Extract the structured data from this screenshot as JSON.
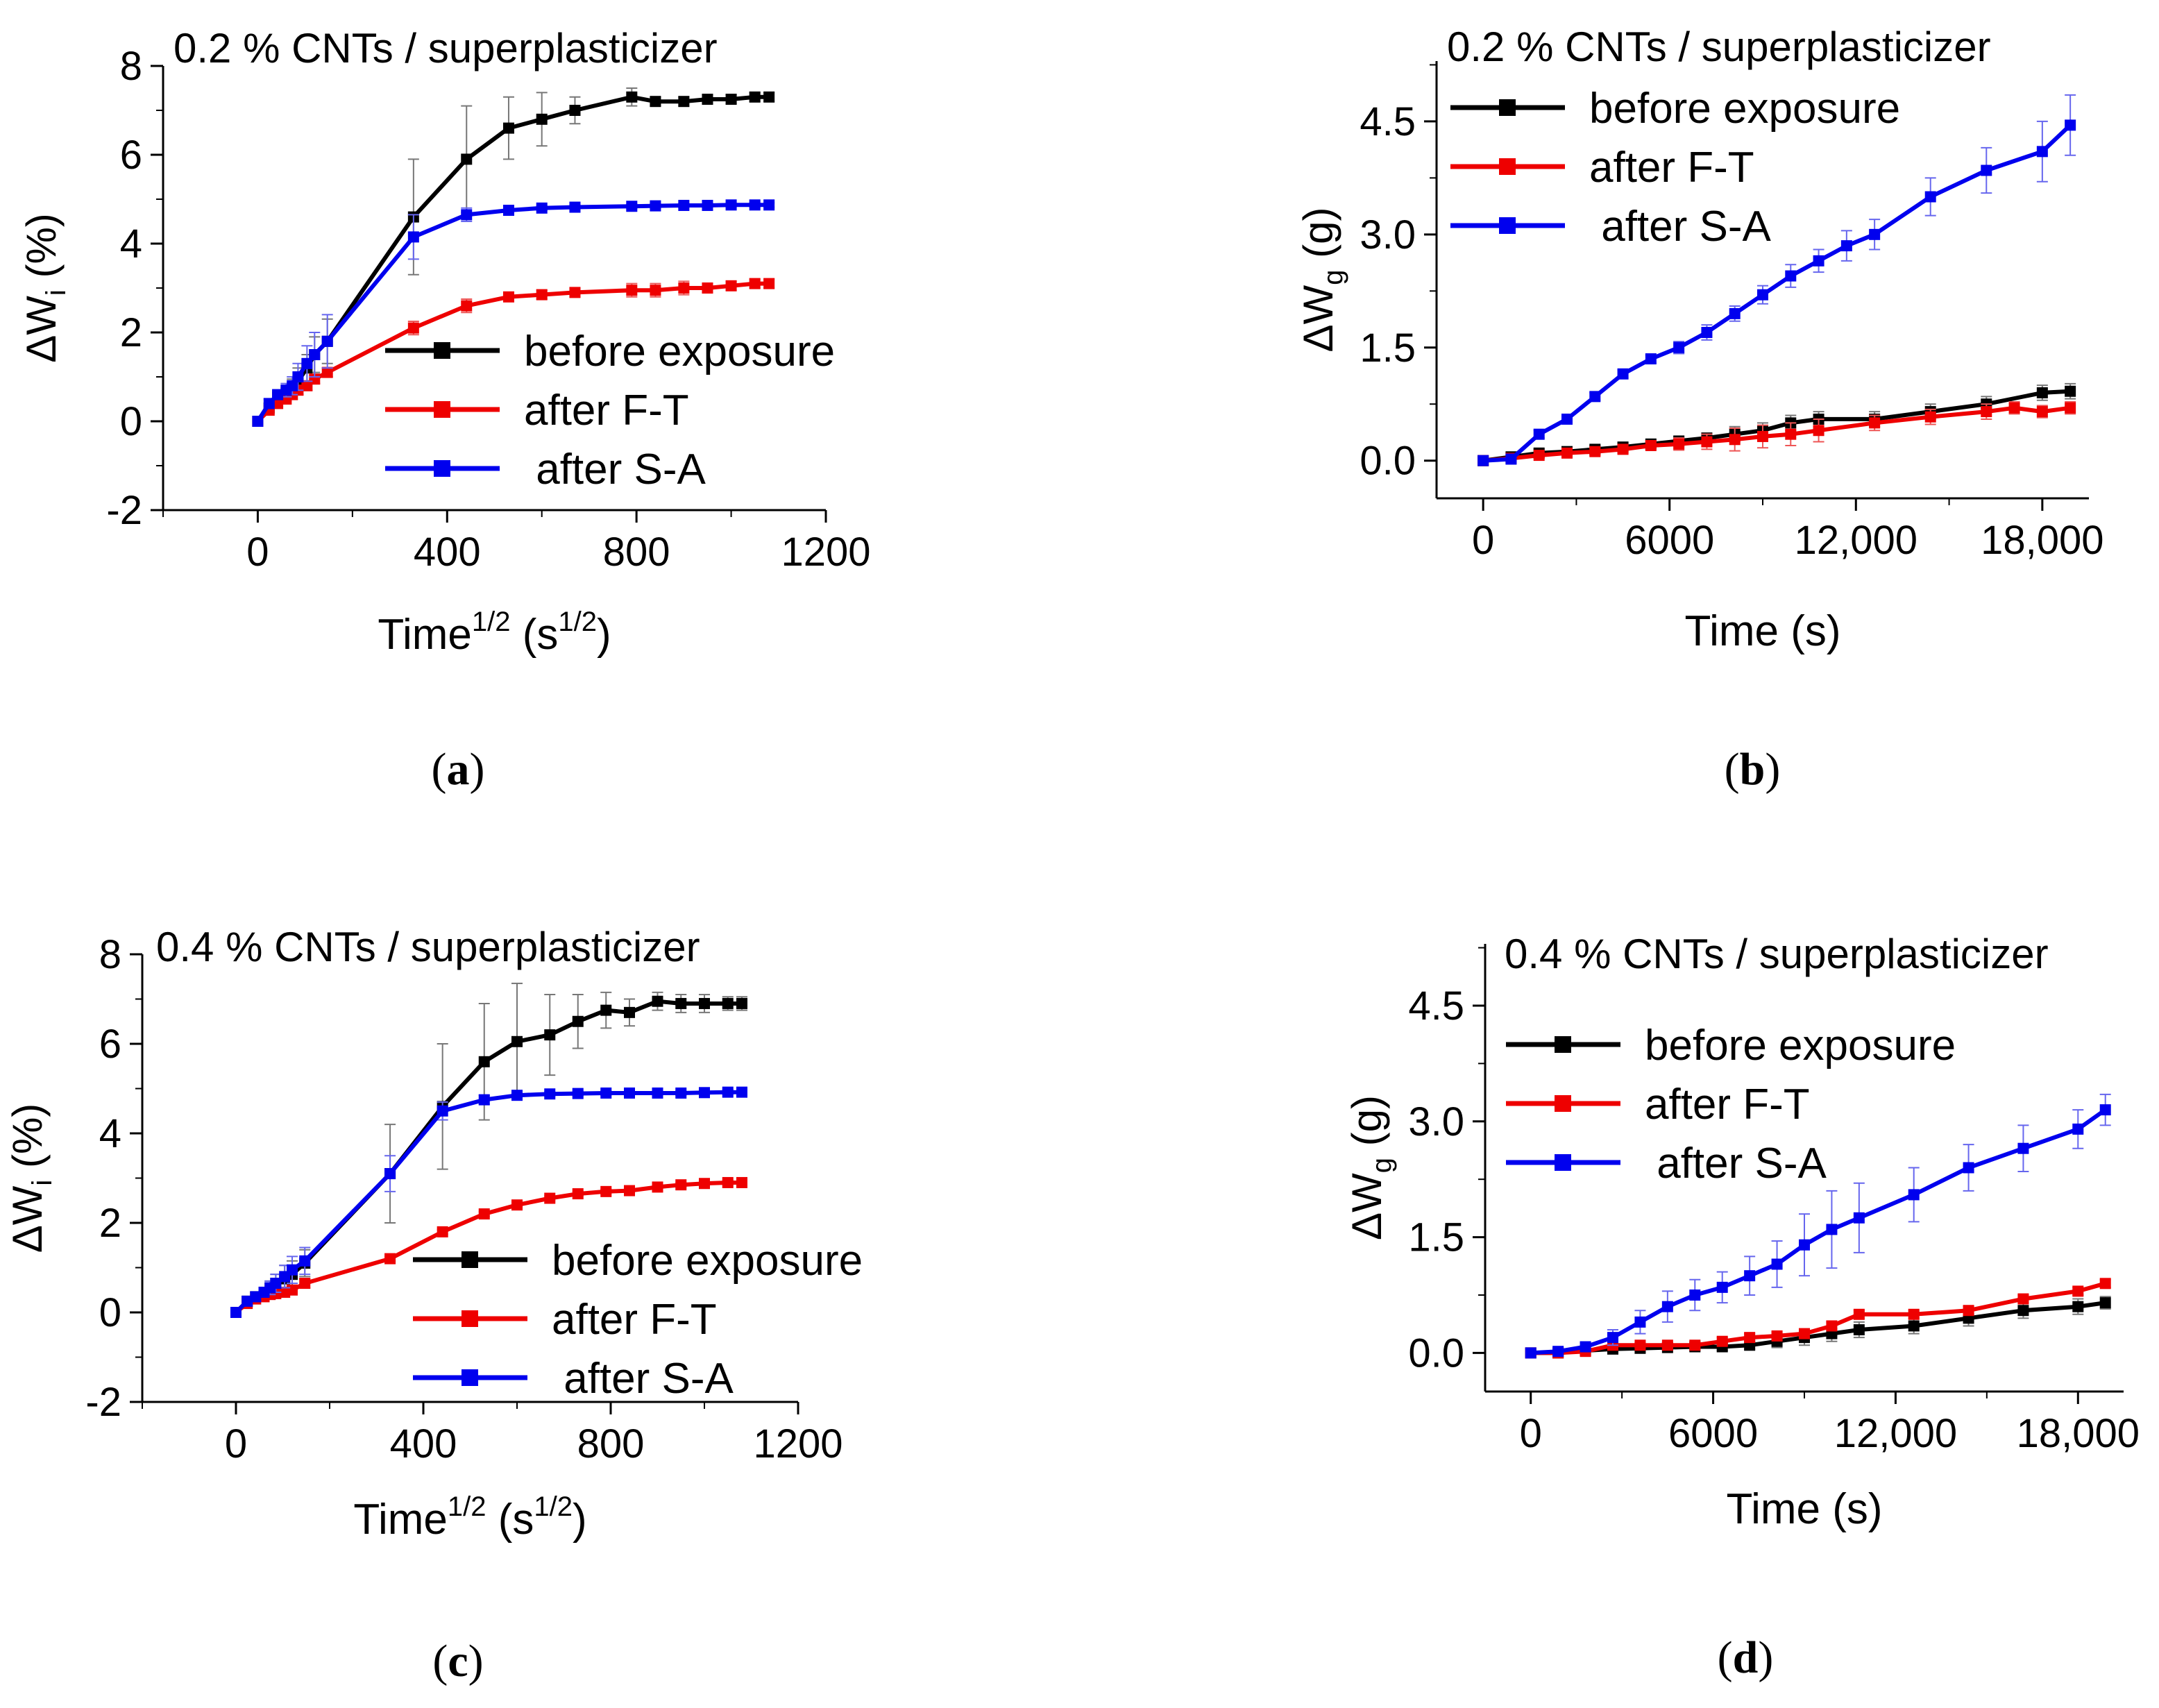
{
  "chart_data": [
    {
      "id": "a",
      "panel_label": "(a)",
      "type": "line",
      "title": "0.2 % CNTs / superplasticizer",
      "ylabel": {
        "main": "ΔW",
        "sub": "i",
        "rest": " (%)"
      },
      "xlabel": {
        "main": "Time",
        "sup1": "1/2",
        "mid": " (s",
        "sup2": "1/2",
        "end": ")"
      },
      "xlim": [
        -200,
        1200
      ],
      "ylim": [
        -2,
        8
      ],
      "xticks": [
        0,
        400,
        800,
        1200
      ],
      "xtick_labels": [
        "0",
        "400",
        "800",
        "1200"
      ],
      "yticks": [
        -2,
        0,
        2,
        4,
        6,
        8
      ],
      "ytick_labels": [
        "-2",
        "0",
        "2",
        "4",
        "6",
        "8"
      ],
      "legend_position": "right",
      "series": [
        {
          "name": "before exposure",
          "color": "#000000",
          "x": [
            0,
            24,
            42,
            60,
            73,
            85,
            104,
            120,
            147,
            329,
            441,
            530,
            600,
            670,
            790,
            840,
            900,
            950,
            1000,
            1050,
            1080
          ],
          "y": [
            0,
            0.3,
            0.55,
            0.65,
            0.75,
            0.9,
            1.2,
            1.5,
            1.8,
            4.6,
            5.9,
            6.6,
            6.8,
            7.0,
            7.3,
            7.2,
            7.2,
            7.25,
            7.25,
            7.3,
            7.3
          ],
          "err": [
            0,
            0.1,
            0.1,
            0.15,
            0.2,
            0.3,
            0.3,
            0.4,
            0.5,
            1.3,
            1.2,
            0.7,
            0.6,
            0.3,
            0.2,
            0.1,
            0.1,
            0.1,
            0.1,
            0.1,
            0.1
          ]
        },
        {
          "name": "after F-T",
          "color": "#ee0000",
          "x": [
            0,
            24,
            42,
            60,
            73,
            85,
            104,
            120,
            147,
            329,
            441,
            530,
            600,
            670,
            790,
            840,
            900,
            950,
            1000,
            1050,
            1080
          ],
          "y": [
            0,
            0.25,
            0.4,
            0.5,
            0.6,
            0.7,
            0.8,
            0.95,
            1.1,
            2.1,
            2.6,
            2.8,
            2.85,
            2.9,
            2.95,
            2.95,
            3.0,
            3.0,
            3.05,
            3.1,
            3.1
          ],
          "err": [
            0,
            0.05,
            0.05,
            0.05,
            0.1,
            0.1,
            0.1,
            0.1,
            0.1,
            0.15,
            0.15,
            0.1,
            0.1,
            0.1,
            0.15,
            0.15,
            0.15,
            0.1,
            0.1,
            0.1,
            0.1
          ]
        },
        {
          "name": " after S-A",
          "color": "#0000ee",
          "x": [
            0,
            24,
            42,
            60,
            73,
            85,
            104,
            120,
            147,
            329,
            441,
            530,
            600,
            670,
            790,
            840,
            900,
            950,
            1000,
            1050,
            1080
          ],
          "y": [
            0,
            0.4,
            0.6,
            0.7,
            0.8,
            1.0,
            1.3,
            1.5,
            1.8,
            4.15,
            4.65,
            4.75,
            4.8,
            4.82,
            4.84,
            4.85,
            4.86,
            4.86,
            4.87,
            4.87,
            4.87
          ],
          "err": [
            0,
            0.1,
            0.1,
            0.15,
            0.2,
            0.3,
            0.4,
            0.5,
            0.6,
            0.5,
            0.15,
            0.1,
            0.05,
            0.05,
            0.05,
            0.05,
            0.05,
            0.05,
            0.05,
            0.05,
            0.05
          ]
        }
      ]
    },
    {
      "id": "b",
      "panel_label": "(b)",
      "type": "line",
      "title": "0.2 % CNTs / superplasticizer",
      "ylabel": {
        "main": "ΔW",
        "sub": "g",
        "rest": " (g)"
      },
      "xlabel": {
        "main": "Time (s)"
      },
      "xlim": [
        -1500,
        19500
      ],
      "ylim": [
        -0.5,
        5.3
      ],
      "xticks": [
        0,
        6000,
        12000,
        18000
      ],
      "xtick_labels": [
        "0",
        "6000",
        "12,000",
        "18,000"
      ],
      "yticks": [
        0,
        1.5,
        3.0,
        4.5
      ],
      "ytick_labels": [
        "0.0",
        "1.5",
        "3.0",
        "4.5"
      ],
      "legend_position": "top-left",
      "series": [
        {
          "name": "before exposure",
          "color": "#000000",
          "x": [
            0,
            900,
            1800,
            2700,
            3600,
            4500,
            5400,
            6300,
            7200,
            8100,
            9000,
            9900,
            10800,
            12600,
            14400,
            16200,
            18000,
            18900
          ],
          "y": [
            0,
            0.05,
            0.1,
            0.12,
            0.15,
            0.18,
            0.22,
            0.26,
            0.3,
            0.35,
            0.4,
            0.5,
            0.55,
            0.55,
            0.65,
            0.75,
            0.9,
            0.92
          ],
          "err": [
            0,
            0.05,
            0.05,
            0.05,
            0.05,
            0.05,
            0.05,
            0.05,
            0.05,
            0.1,
            0.1,
            0.1,
            0.1,
            0.1,
            0.1,
            0.1,
            0.1,
            0.1
          ]
        },
        {
          "name": "after F-T",
          "color": "#ee0000",
          "x": [
            0,
            900,
            1800,
            2700,
            3600,
            4500,
            5400,
            6300,
            7200,
            8100,
            9000,
            9900,
            10800,
            12600,
            14400,
            16200,
            17100,
            18000,
            18900
          ],
          "y": [
            0,
            0.03,
            0.07,
            0.1,
            0.12,
            0.15,
            0.2,
            0.22,
            0.25,
            0.28,
            0.32,
            0.35,
            0.4,
            0.5,
            0.58,
            0.65,
            0.7,
            0.65,
            0.7
          ],
          "err": [
            0,
            0.03,
            0.03,
            0.05,
            0.05,
            0.05,
            0.05,
            0.08,
            0.1,
            0.15,
            0.15,
            0.15,
            0.15,
            0.1,
            0.1,
            0.1,
            0.08,
            0.08,
            0.08
          ]
        },
        {
          "name": " after S-A",
          "color": "#0000ee",
          "x": [
            0,
            900,
            1800,
            2700,
            3600,
            4500,
            5400,
            6300,
            7200,
            8100,
            9000,
            9900,
            10800,
            11700,
            12600,
            14400,
            16200,
            18000,
            18900
          ],
          "y": [
            0,
            0.02,
            0.35,
            0.55,
            0.85,
            1.15,
            1.35,
            1.5,
            1.7,
            1.95,
            2.2,
            2.45,
            2.65,
            2.85,
            3.0,
            3.5,
            3.85,
            4.1,
            4.45
          ],
          "err": [
            0,
            0.02,
            0.05,
            0.05,
            0.05,
            0.05,
            0.05,
            0.08,
            0.1,
            0.1,
            0.12,
            0.15,
            0.15,
            0.2,
            0.2,
            0.25,
            0.3,
            0.4,
            0.4
          ]
        }
      ]
    },
    {
      "id": "c",
      "panel_label": "(c)",
      "type": "line",
      "title": "0.4 % CNTs / superplasticizer",
      "ylabel": {
        "main": "ΔW",
        "sub": "i",
        "rest": " (%)"
      },
      "xlabel": {
        "main": "Time",
        "sup1": "1/2",
        "mid": " (s",
        "sup2": "1/2",
        "end": ")"
      },
      "xlim": [
        -200,
        1200
      ],
      "ylim": [
        -2,
        8
      ],
      "xticks": [
        0,
        400,
        800,
        1200
      ],
      "xtick_labels": [
        "0",
        "400",
        "800",
        "1200"
      ],
      "yticks": [
        -2,
        0,
        2,
        4,
        6,
        8
      ],
      "ytick_labels": [
        "-2",
        "0",
        "2",
        "4",
        "6",
        "8"
      ],
      "legend_position": "bottom-right",
      "series": [
        {
          "name": "before exposure",
          "color": "#000000",
          "x": [
            0,
            24,
            42,
            60,
            73,
            85,
            104,
            120,
            147,
            329,
            441,
            530,
            600,
            670,
            730,
            790,
            840,
            900,
            950,
            1000,
            1050,
            1080
          ],
          "y": [
            0,
            0.25,
            0.35,
            0.45,
            0.55,
            0.65,
            0.75,
            0.85,
            1.1,
            3.1,
            4.6,
            5.6,
            6.05,
            6.2,
            6.5,
            6.75,
            6.7,
            6.95,
            6.9,
            6.9,
            6.9,
            6.9
          ],
          "err": [
            0,
            0.1,
            0.1,
            0.1,
            0.15,
            0.2,
            0.3,
            0.3,
            0.3,
            1.1,
            1.4,
            1.3,
            1.3,
            0.9,
            0.6,
            0.4,
            0.3,
            0.2,
            0.2,
            0.2,
            0.15,
            0.15
          ]
        },
        {
          "name": "after F-T",
          "color": "#ee0000",
          "x": [
            0,
            24,
            42,
            60,
            73,
            85,
            104,
            120,
            147,
            329,
            441,
            530,
            600,
            670,
            730,
            790,
            840,
            900,
            950,
            1000,
            1050,
            1080
          ],
          "y": [
            0,
            0.2,
            0.3,
            0.35,
            0.4,
            0.42,
            0.45,
            0.5,
            0.65,
            1.2,
            1.8,
            2.2,
            2.4,
            2.55,
            2.65,
            2.7,
            2.72,
            2.8,
            2.85,
            2.88,
            2.9,
            2.9
          ],
          "err": [
            0,
            0.05,
            0.05,
            0.05,
            0.05,
            0.05,
            0.05,
            0.05,
            0.1,
            0.05,
            0.05,
            0.05,
            0.05,
            0.05,
            0.05,
            0.05,
            0.05,
            0.05,
            0.05,
            0.05,
            0.05,
            0.05
          ]
        },
        {
          "name": " after S-A",
          "color": "#0000ee",
          "x": [
            0,
            24,
            42,
            60,
            73,
            85,
            104,
            120,
            147,
            329,
            441,
            530,
            600,
            670,
            730,
            790,
            840,
            900,
            950,
            1000,
            1050,
            1080
          ],
          "y": [
            0,
            0.25,
            0.35,
            0.45,
            0.55,
            0.65,
            0.8,
            0.95,
            1.15,
            3.1,
            4.5,
            4.75,
            4.85,
            4.88,
            4.89,
            4.9,
            4.9,
            4.9,
            4.9,
            4.91,
            4.92,
            4.92
          ],
          "err": [
            0,
            0.1,
            0.1,
            0.1,
            0.15,
            0.2,
            0.25,
            0.3,
            0.3,
            0.4,
            0.2,
            0.1,
            0.05,
            0.05,
            0.05,
            0.05,
            0.05,
            0.05,
            0.05,
            0.05,
            0.05,
            0.05
          ]
        }
      ]
    },
    {
      "id": "d",
      "panel_label": "(d)",
      "type": "line",
      "title": "0.4 % CNTs / superplasticizer",
      "ylabel": {
        "main": "ΔW",
        "sub": "g",
        "rest": " (g)"
      },
      "xlabel": {
        "main": "Time (s)"
      },
      "xlim": [
        -1500,
        19500
      ],
      "ylim": [
        -0.5,
        5.3
      ],
      "xticks": [
        0,
        6000,
        12000,
        18000
      ],
      "xtick_labels": [
        "0",
        "6000",
        "12,000",
        "18,000"
      ],
      "yticks": [
        0,
        1.5,
        3.0,
        4.5
      ],
      "ytick_labels": [
        "0.0",
        "1.5",
        "3.0",
        "4.5"
      ],
      "legend_position": "top-left",
      "series": [
        {
          "name": "before exposure",
          "color": "#000000",
          "x": [
            0,
            900,
            1800,
            2700,
            3600,
            4500,
            5400,
            6300,
            7200,
            8100,
            9000,
            9900,
            10800,
            12600,
            14400,
            16200,
            18000,
            18900
          ],
          "y": [
            0,
            0.0,
            0.03,
            0.05,
            0.06,
            0.07,
            0.08,
            0.08,
            0.1,
            0.15,
            0.2,
            0.25,
            0.3,
            0.35,
            0.45,
            0.55,
            0.6,
            0.65
          ],
          "err": [
            0,
            0.02,
            0.02,
            0.02,
            0.03,
            0.03,
            0.05,
            0.05,
            0.05,
            0.08,
            0.1,
            0.1,
            0.1,
            0.1,
            0.1,
            0.1,
            0.1,
            0.08
          ]
        },
        {
          "name": "after F-T",
          "color": "#ee0000",
          "x": [
            0,
            900,
            1800,
            2700,
            3600,
            4500,
            5400,
            6300,
            7200,
            8100,
            9000,
            9900,
            10800,
            12600,
            14400,
            16200,
            18000,
            18900
          ],
          "y": [
            0,
            0.0,
            0.02,
            0.1,
            0.1,
            0.1,
            0.1,
            0.15,
            0.2,
            0.22,
            0.25,
            0.35,
            0.5,
            0.5,
            0.55,
            0.7,
            0.8,
            0.9
          ],
          "err": [
            0,
            0.02,
            0.02,
            0.03,
            0.03,
            0.03,
            0.03,
            0.05,
            0.05,
            0.05,
            0.05,
            0.05,
            0.05,
            0.05,
            0.05,
            0.05,
            0.05,
            0.05
          ]
        },
        {
          "name": " after S-A",
          "color": "#0000ee",
          "x": [
            0,
            900,
            1800,
            2700,
            3600,
            4500,
            5400,
            6300,
            7200,
            8100,
            9000,
            9900,
            10800,
            12600,
            14400,
            16200,
            18000,
            18900
          ],
          "y": [
            0,
            0.02,
            0.08,
            0.2,
            0.4,
            0.6,
            0.75,
            0.85,
            1.0,
            1.15,
            1.4,
            1.6,
            1.75,
            2.05,
            2.4,
            2.65,
            2.9,
            3.15
          ],
          "err": [
            0,
            0.02,
            0.05,
            0.1,
            0.15,
            0.2,
            0.2,
            0.2,
            0.25,
            0.3,
            0.4,
            0.5,
            0.45,
            0.35,
            0.3,
            0.3,
            0.25,
            0.2
          ]
        }
      ]
    }
  ]
}
